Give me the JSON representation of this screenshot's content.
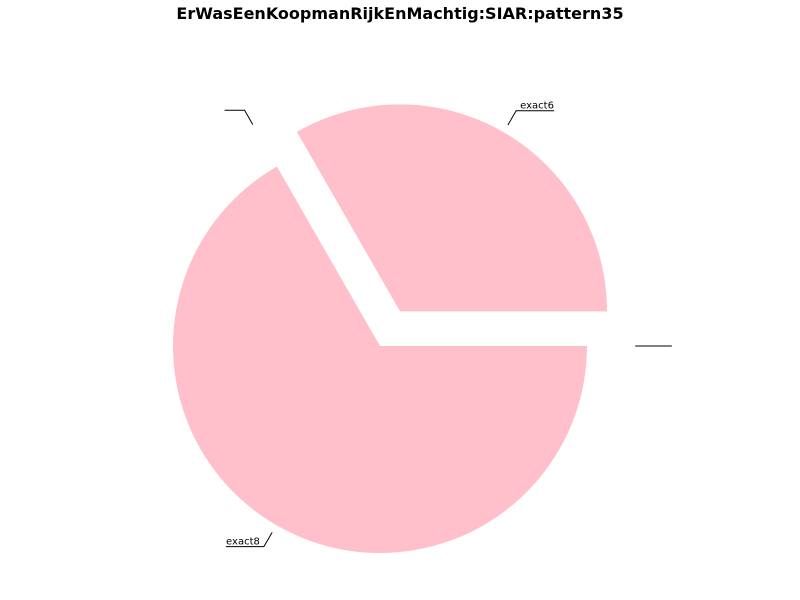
{
  "chart_data": {
    "type": "pie",
    "title": "ErWasEenKoopmanRijkEnMachtig:SIAR:pattern35",
    "slices": [
      {
        "label": "exact6",
        "value": 33.3,
        "color": "#ffc0cb",
        "exploded": true
      },
      {
        "label": "",
        "value": 0.0,
        "color": "#ffc0cb",
        "exploded": true
      },
      {
        "label": "exact8",
        "value": 66.7,
        "color": "#ffc0cb",
        "exploded": false
      },
      {
        "label": "",
        "value": 0.0,
        "color": "#ffc0cb",
        "exploded": true
      }
    ],
    "start_angle_deg": 0,
    "direction": "counterclockwise",
    "legend": "none"
  }
}
